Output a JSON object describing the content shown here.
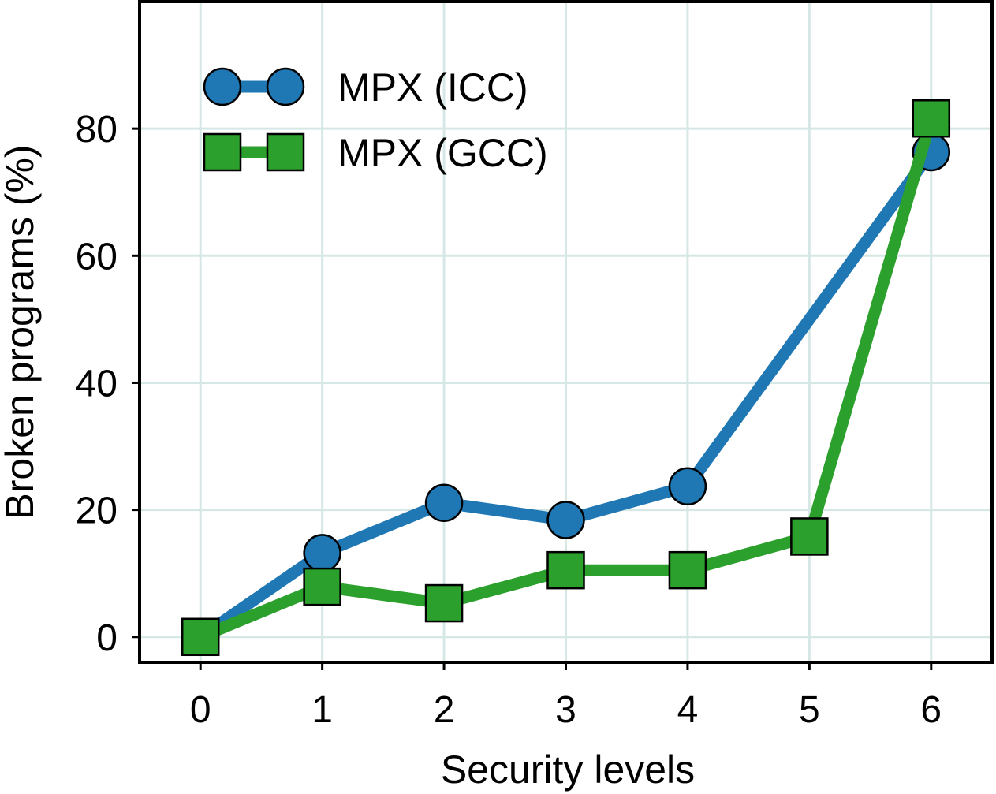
{
  "chart_data": {
    "type": "line",
    "title": "",
    "xlabel": "Security levels",
    "ylabel": "Broken programs (%)",
    "x": [
      0,
      1,
      2,
      3,
      4,
      5,
      6
    ],
    "x_ticks": [
      "0",
      "1",
      "2",
      "3",
      "4",
      "5",
      "6"
    ],
    "y_ticks": [
      "0",
      "20",
      "40",
      "60",
      "80"
    ],
    "xlim": [
      -0.5,
      6.5
    ],
    "ylim": [
      -4,
      100
    ],
    "grid": true,
    "legend_position": "top-left",
    "series": [
      {
        "name": "MPX (ICC)",
        "marker": "circle",
        "color": "#1f77b4",
        "x": [
          0,
          1,
          2,
          3,
          4,
          6
        ],
        "values": [
          0,
          13.2,
          21.1,
          18.4,
          23.7,
          76.3
        ]
      },
      {
        "name": "MPX (GCC)",
        "marker": "square",
        "color": "#2ca02c",
        "x": [
          0,
          1,
          2,
          3,
          4,
          5,
          6
        ],
        "values": [
          0,
          7.9,
          5.3,
          10.5,
          10.5,
          15.8,
          81.6
        ]
      }
    ]
  }
}
